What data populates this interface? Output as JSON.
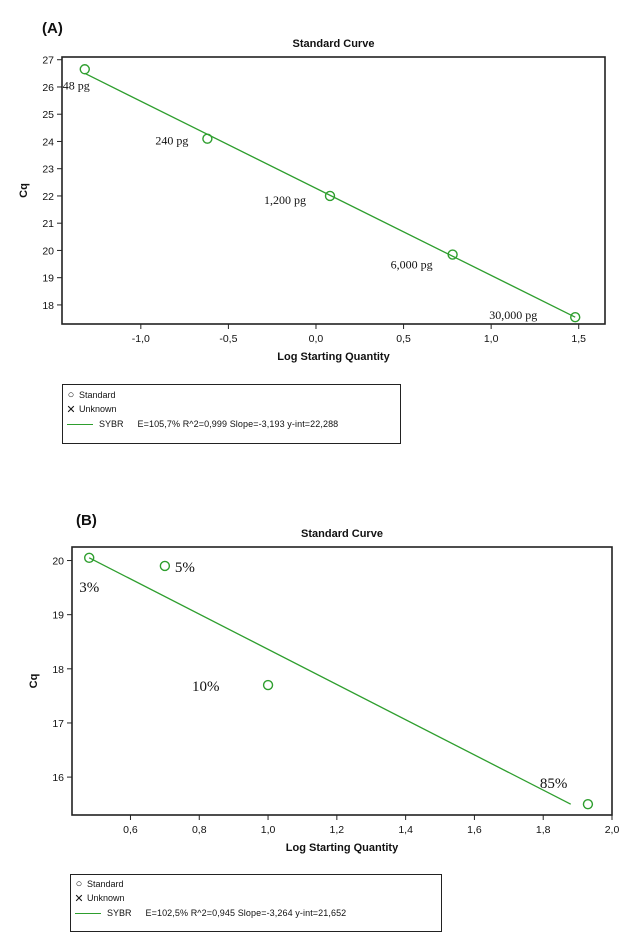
{
  "colors": {
    "series": "#2e9e2e",
    "axis": "#222222",
    "text": "#111111"
  },
  "chart_data": [
    {
      "panel_label": "(A)",
      "type": "scatter",
      "title": "Standard Curve",
      "xlabel": "Log Starting Quantity",
      "ylabel": "Cq",
      "xlim": [
        -1.45,
        1.65
      ],
      "ylim": [
        17.3,
        27.1
      ],
      "xticks": [
        -1.0,
        -0.5,
        0.0,
        0.5,
        1.0,
        1.5
      ],
      "xtick_labels": [
        "-1,0",
        "-0,5",
        "0,0",
        "0,5",
        "1,0",
        "1,5"
      ],
      "yticks": [
        18,
        19,
        20,
        21,
        22,
        23,
        24,
        25,
        26,
        27
      ],
      "ytick_labels": [
        "18",
        "19",
        "20",
        "21",
        "22",
        "23",
        "24",
        "25",
        "26",
        "27"
      ],
      "points": [
        {
          "x": -1.32,
          "y": 26.65,
          "label": "48 pg"
        },
        {
          "x": -0.62,
          "y": 24.1,
          "label": "240 pg"
        },
        {
          "x": 0.08,
          "y": 22.0,
          "label": "1,200 pg"
        },
        {
          "x": 0.78,
          "y": 19.85,
          "label": "6,000 pg"
        },
        {
          "x": 1.48,
          "y": 17.55,
          "label": "30,000 pg"
        }
      ],
      "fit_line": {
        "x": [
          -1.32,
          1.48
        ],
        "y": [
          26.5,
          17.55
        ]
      },
      "legend": {
        "items": [
          {
            "symbol": "O",
            "label": "Standard"
          },
          {
            "symbol": "X",
            "label": "Unknown"
          }
        ],
        "series_name": "SYBR",
        "stats": "E=105,7% R^2=0,999 Slope=-3,193 y-int=22,288"
      }
    },
    {
      "panel_label": "(B)",
      "type": "scatter",
      "title": "Standard Curve",
      "xlabel": "Log Starting Quantity",
      "ylabel": "Cq",
      "xlim": [
        0.43,
        2.0
      ],
      "ylim": [
        15.3,
        20.25
      ],
      "xticks": [
        0.6,
        0.8,
        1.0,
        1.2,
        1.4,
        1.6,
        1.8,
        2.0
      ],
      "xtick_labels": [
        "0,6",
        "0,8",
        "1,0",
        "1,2",
        "1,4",
        "1,6",
        "1,8",
        "2,0"
      ],
      "yticks": [
        16,
        17,
        18,
        19,
        20
      ],
      "ytick_labels": [
        "16",
        "17",
        "18",
        "19",
        "20"
      ],
      "points": [
        {
          "x": 0.48,
          "y": 20.05,
          "label": "3%"
        },
        {
          "x": 0.7,
          "y": 19.9,
          "label": "5%"
        },
        {
          "x": 1.0,
          "y": 17.7,
          "label": "10%"
        },
        {
          "x": 1.93,
          "y": 15.5,
          "label": "85%"
        }
      ],
      "fit_line": {
        "x": [
          0.48,
          1.88
        ],
        "y": [
          20.05,
          15.5
        ]
      },
      "legend": {
        "items": [
          {
            "symbol": "O",
            "label": "Standard"
          },
          {
            "symbol": "X",
            "label": "Unknown"
          }
        ],
        "series_name": "SYBR",
        "stats": "E=102,5% R^2=0,945 Slope=-3,264 y-int=21,652"
      }
    }
  ]
}
